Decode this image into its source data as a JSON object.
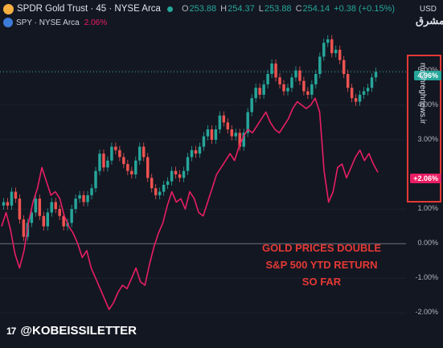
{
  "header": {
    "symbol_title": "SPDR Gold Trust · 45 · NYSE Arca",
    "ohlc": [
      {
        "k": "O",
        "v": "253.88"
      },
      {
        "k": "H",
        "v": "254.37"
      },
      {
        "k": "L",
        "v": "253.88"
      },
      {
        "k": "C",
        "v": "254.14"
      }
    ],
    "change": "+0.38 (+0.15%)"
  },
  "compare": {
    "symbol": "SPY · NYSE Arca",
    "value": "2.06%"
  },
  "axis": {
    "currency": "USD"
  },
  "badges": {
    "gold": "4.96%",
    "spy": "+2.06%"
  },
  "annotation": {
    "line1": "GOLD PRICES DOUBLE",
    "line2": "S&P 500 YTD RETURN",
    "line3": "SO FAR"
  },
  "footer": {
    "tv_logo": "17",
    "handle": "@KOBEISSILETTER"
  },
  "watermark": {
    "symbol": "مشرق",
    "text": "mashreghnews.ir"
  },
  "colors": {
    "gold_up": "#26a69a",
    "gold_down": "#ef5350",
    "spy_line": "#e91e63",
    "accent_box": "#e53935"
  },
  "chart_data": {
    "type": "line",
    "x_label": "",
    "y_label": "",
    "ylim": [
      -2.2,
      6.2
    ],
    "y_ticks": [
      "5.00%",
      "4.00%",
      "3.00%",
      "1.00%",
      "0.00%",
      "-1.00%",
      "-2.00%"
    ],
    "y_tick_values": [
      5,
      4,
      3,
      1,
      0,
      -1,
      -2
    ],
    "series": [
      {
        "name": "SPDR Gold Trust",
        "style": "candles",
        "values": [
          1.2,
          1.1,
          1.5,
          1.3,
          0.7,
          0.2,
          0.6,
          0.9,
          1.3,
          0.8,
          0.5,
          0.9,
          1.2,
          1.0,
          0.8,
          0.5,
          0.6,
          1.0,
          1.3,
          1.4,
          1.2,
          1.4,
          1.6,
          2.1,
          2.6,
          2.2,
          2.4,
          2.8,
          2.7,
          2.5,
          2.3,
          2.1,
          2.0,
          2.4,
          2.8,
          2.5,
          1.9,
          1.6,
          1.4,
          1.5,
          1.7,
          1.8,
          2.1,
          2.0,
          1.9,
          2.1,
          2.5,
          2.7,
          2.6,
          2.8,
          3.1,
          3.3,
          3.0,
          3.3,
          3.7,
          3.5,
          3.3,
          3.1,
          3.2,
          2.8,
          3.2,
          3.8,
          4.2,
          4.5,
          4.3,
          4.6,
          4.9,
          5.2,
          4.8,
          4.6,
          4.4,
          4.5,
          4.8,
          5.0,
          4.7,
          4.4,
          4.3,
          4.6,
          4.9,
          5.4,
          5.8,
          5.9,
          5.5,
          5.6,
          5.3,
          4.9,
          4.5,
          4.2,
          4.1,
          4.3,
          4.4,
          4.5,
          4.8,
          4.96
        ]
      },
      {
        "name": "SPY",
        "style": "line",
        "values": [
          0.5,
          0.9,
          0.4,
          -0.3,
          -0.7,
          -0.2,
          0.6,
          1.2,
          1.6,
          2.2,
          1.8,
          1.4,
          1.5,
          1.3,
          0.8,
          0.5,
          0.3,
          0.0,
          -0.4,
          -0.2,
          -0.7,
          -1.0,
          -1.3,
          -1.6,
          -1.9,
          -1.7,
          -1.4,
          -1.2,
          -1.3,
          -1.0,
          -0.7,
          -1.1,
          -1.2,
          -0.6,
          -0.1,
          0.3,
          0.6,
          1.1,
          1.5,
          1.2,
          1.3,
          1.0,
          1.5,
          1.3,
          0.9,
          0.8,
          1.2,
          1.6,
          2.0,
          2.2,
          2.4,
          2.6,
          2.4,
          2.8,
          3.1,
          3.3,
          3.2,
          3.4,
          3.6,
          3.8,
          3.5,
          3.3,
          3.2,
          3.4,
          3.6,
          3.9,
          4.1,
          4.0,
          3.9,
          4.0,
          4.2,
          3.8,
          2.1,
          1.2,
          1.5,
          2.2,
          2.3,
          1.9,
          2.2,
          2.5,
          2.7,
          2.4,
          2.6,
          2.3,
          2.06
        ]
      }
    ]
  }
}
